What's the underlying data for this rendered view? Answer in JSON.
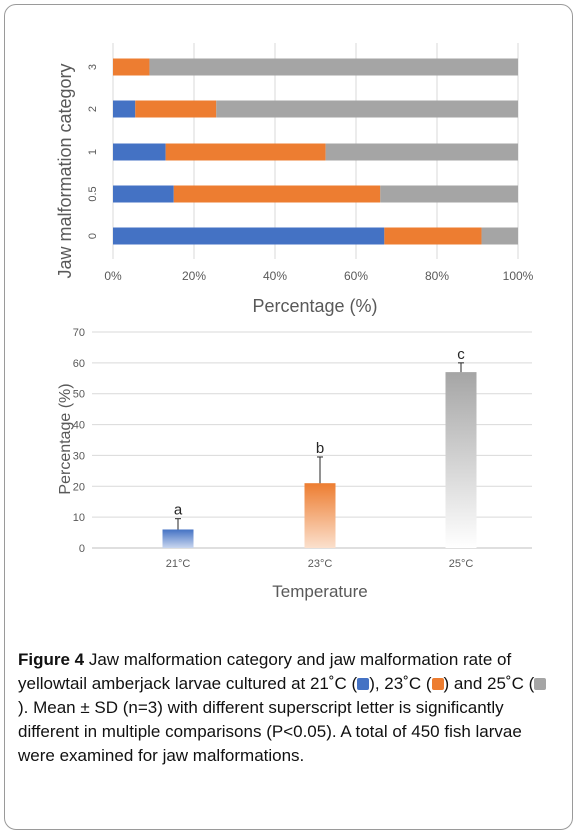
{
  "chart_data": [
    {
      "type": "bar",
      "orientation": "horizontal",
      "stacked": "percent",
      "categories": [
        "3",
        "2",
        "1",
        "0.5",
        "0"
      ],
      "series": [
        {
          "color": "#4472c4",
          "values": [
            0,
            5.5,
            13,
            15,
            67
          ]
        },
        {
          "color": "#ed7d31",
          "values": [
            9,
            20,
            39.5,
            51,
            24
          ]
        },
        {
          "color": "#a5a5a5",
          "values": [
            91,
            74.5,
            47.5,
            34,
            9
          ]
        }
      ],
      "xlabel": "Percentage (%)",
      "ylabel": "Jaw malformation category",
      "xticks": [
        "0%",
        "20%",
        "40%",
        "60%",
        "80%",
        "100%"
      ],
      "xlim": [
        0,
        100
      ],
      "grid": true
    },
    {
      "type": "bar",
      "categories": [
        "21°C",
        "23°C",
        "25°C"
      ],
      "values": [
        6,
        21,
        57
      ],
      "errors": [
        3.5,
        8.5,
        3
      ],
      "letters": [
        "a",
        "b",
        "c"
      ],
      "colors": [
        "#4472c4",
        "#ed7d31",
        "#a5a5a5"
      ],
      "xlabel": "Temperature",
      "ylabel": "Percentage (%)",
      "yticks": [
        "0",
        "10",
        "20",
        "30",
        "40",
        "50",
        "60",
        "70"
      ],
      "ylim": [
        0,
        70
      ],
      "grid": true
    }
  ],
  "caption": {
    "label": "Figure 4",
    "text1": " Jaw malformation category and jaw malformation rate of yellowtail amberjack larvae cultured at 21˚C (",
    "text2": "), 23˚C (",
    "text3": ") and 25˚C (",
    "text4": "). Mean ± SD (n=3) with different superscript letter is significantly different in multiple comparisons (P<0.05). A total of 450 fish larvae were examined for jaw malformations."
  }
}
